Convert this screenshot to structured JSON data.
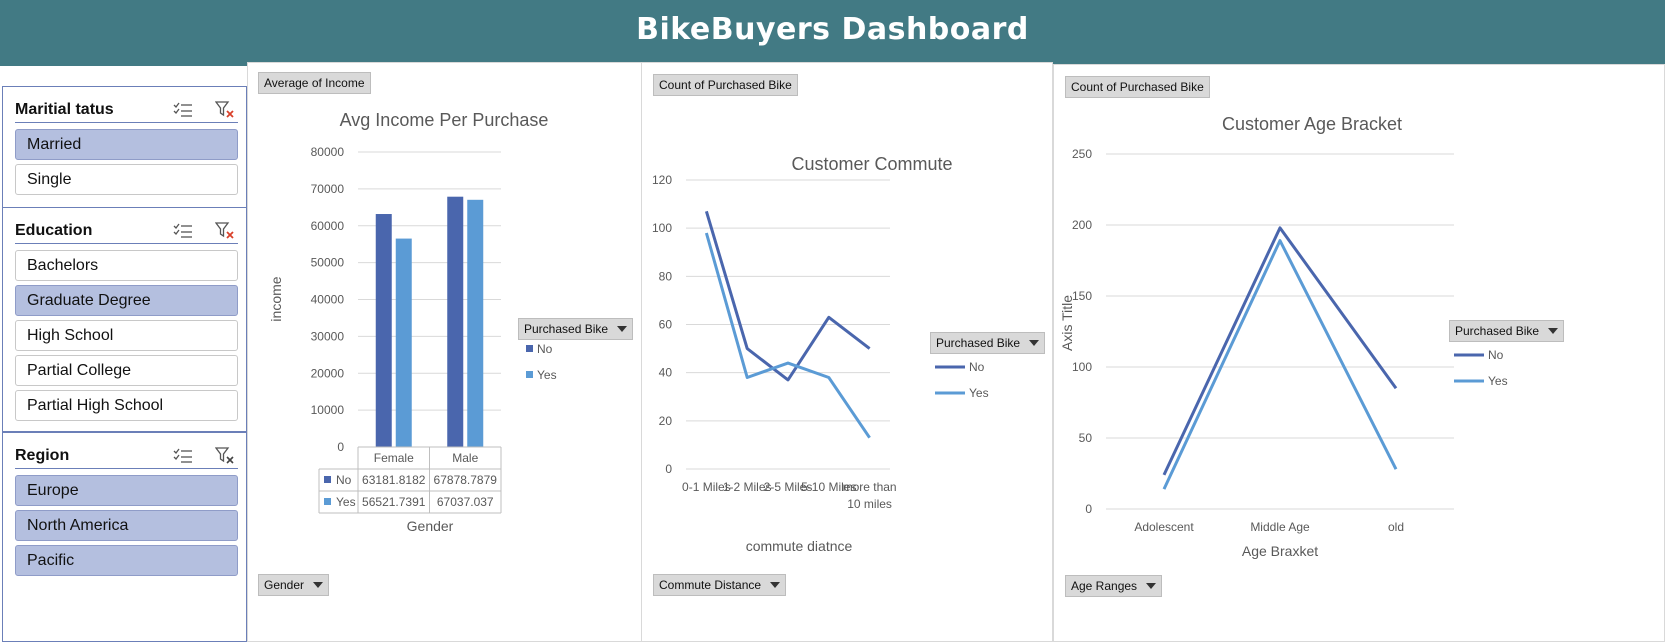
{
  "title": "BikeBuyers Dashboard",
  "colors": {
    "header": "#427a84",
    "no": "#4a66ad",
    "yes": "#5b9bd5",
    "selected": "#b4bfdf"
  },
  "slicers": {
    "marital": {
      "title": "Maritial tatus",
      "items": [
        {
          "label": "Married",
          "selected": true
        },
        {
          "label": "Single",
          "selected": false
        }
      ]
    },
    "education": {
      "title": "Education",
      "items": [
        {
          "label": "Bachelors",
          "selected": false
        },
        {
          "label": "Graduate Degree",
          "selected": true
        },
        {
          "label": "High School",
          "selected": false
        },
        {
          "label": "Partial College",
          "selected": false
        },
        {
          "label": "Partial High School",
          "selected": false
        }
      ]
    },
    "region": {
      "title": "Region",
      "items": [
        {
          "label": "Europe",
          "selected": true
        },
        {
          "label": "North America",
          "selected": true
        },
        {
          "label": "Pacific",
          "selected": true
        }
      ]
    }
  },
  "panels": {
    "income": {
      "value_button": "Average of Income",
      "axis_button": "Gender",
      "legend_button": "Purchased Bike"
    },
    "commute": {
      "value_button": "Count of Purchased Bike",
      "axis_button": "Commute Distance",
      "legend_button": "Purchased Bike"
    },
    "age": {
      "value_button": "Count of Purchased Bike",
      "axis_button": "Age Ranges",
      "legend_button": "Purchased Bike"
    }
  },
  "chart_data": [
    {
      "type": "bar",
      "title": "Avg Income Per Purchase",
      "xlabel": "Gender",
      "ylabel": "income",
      "categories": [
        "Female",
        "Male"
      ],
      "series": [
        {
          "name": "No",
          "values": [
            63181.8182,
            67878.7879
          ],
          "labels": [
            "63181.8182",
            "67878.7879"
          ]
        },
        {
          "name": "Yes",
          "values": [
            56521.7391,
            67037.037
          ],
          "labels": [
            "56521.7391",
            "67037.037"
          ]
        }
      ],
      "ylim": [
        0,
        80000
      ],
      "yticks": [
        "0",
        "10000",
        "20000",
        "30000",
        "40000",
        "50000",
        "60000",
        "70000",
        "80000"
      ],
      "grid": true,
      "legend": "right",
      "data_table": true
    },
    {
      "type": "line",
      "title": "Customer Commute",
      "xlabel": "commute diatnce",
      "ylabel": "",
      "categories": [
        "0-1 Miles",
        "1-2 Miles",
        "2-5 Miles",
        "5-10 Miles",
        "more than 10 miles"
      ],
      "series": [
        {
          "name": "No",
          "values": [
            107,
            50,
            37,
            63,
            50
          ]
        },
        {
          "name": "Yes",
          "values": [
            98,
            38,
            44,
            38,
            13
          ]
        }
      ],
      "ylim": [
        0,
        120
      ],
      "yticks": [
        "0",
        "20",
        "40",
        "60",
        "80",
        "100",
        "120"
      ],
      "grid": true,
      "legend": "right"
    },
    {
      "type": "line",
      "title": "Customer Age Bracket",
      "xlabel": "Age Braxket",
      "ylabel": "Axis Title",
      "categories": [
        "Adolescent",
        "Middle Age",
        "old"
      ],
      "series": [
        {
          "name": "No",
          "values": [
            24,
            198,
            85
          ]
        },
        {
          "name": "Yes",
          "values": [
            14,
            189,
            28
          ]
        }
      ],
      "ylim": [
        0,
        250
      ],
      "yticks": [
        "0",
        "50",
        "100",
        "150",
        "200",
        "250"
      ],
      "grid": true,
      "legend": "right"
    }
  ]
}
